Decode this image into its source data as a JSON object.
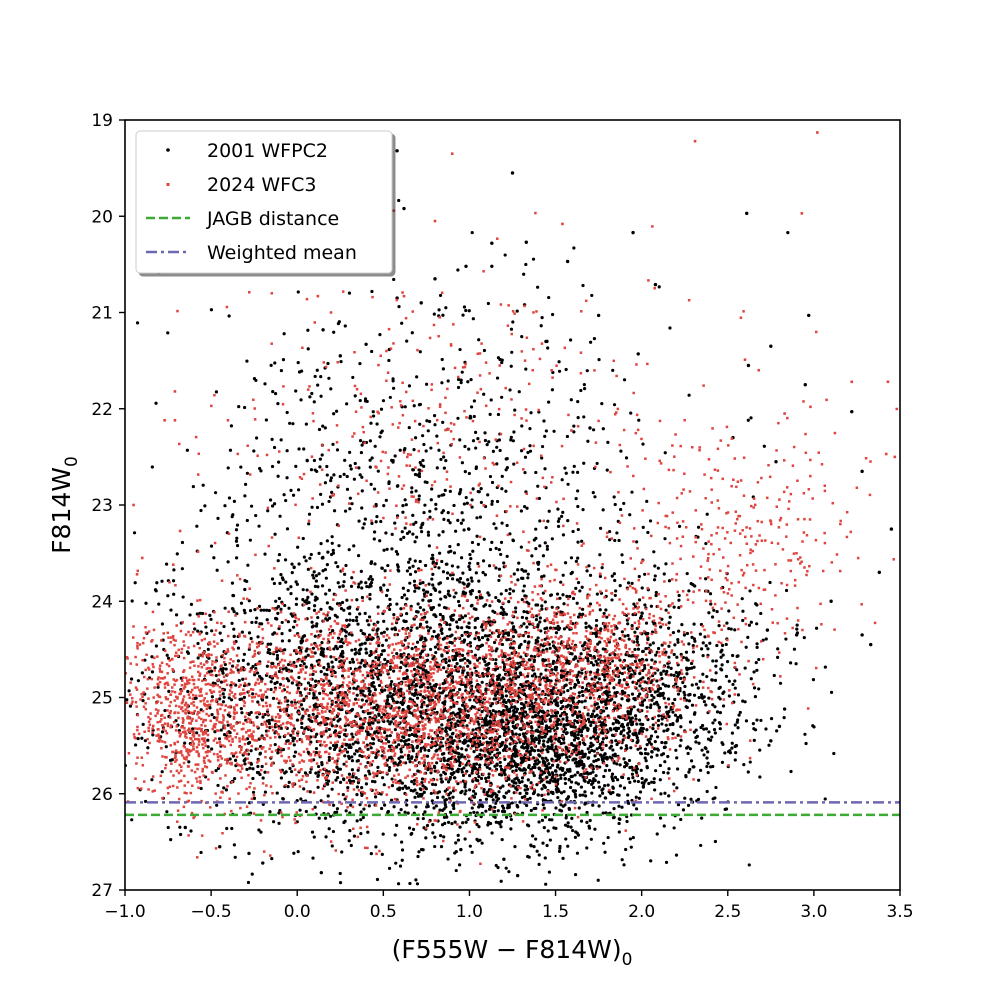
{
  "chart_data": {
    "type": "scatter",
    "title": "",
    "xlabel": "(F555W − F814W)",
    "xlabel_sub": "0",
    "ylabel": "F814W",
    "ylabel_sub": "0",
    "xlim": [
      -1.0,
      3.5
    ],
    "ylim": [
      27,
      19
    ],
    "y_inverted": true,
    "grid": false,
    "legend_position": "top-left",
    "x_ticks": [
      "−1.0",
      "−0.5",
      "0.0",
      "0.5",
      "1.0",
      "1.5",
      "2.0",
      "2.5",
      "3.0",
      "3.5"
    ],
    "y_ticks": [
      "19",
      "20",
      "21",
      "22",
      "23",
      "24",
      "25",
      "26",
      "27"
    ],
    "series": [
      {
        "name": "2001 WFPC2",
        "kind": "scatter",
        "color": "#000000",
        "points": [
          [
            0.58,
            19.32
          ],
          [
            0.62,
            19.92
          ],
          [
            1.25,
            19.55
          ],
          [
            2.61,
            19.97
          ],
          [
            1.95,
            20.17
          ],
          [
            1.13,
            20.28
          ],
          [
            1.33,
            20.27
          ],
          [
            0.98,
            20.52
          ],
          [
            1.13,
            20.52
          ],
          [
            0.8,
            20.65
          ],
          [
            2.08,
            20.71
          ],
          [
            1.57,
            20.47
          ],
          [
            0.58,
            20.85
          ],
          [
            0.72,
            20.9
          ],
          [
            1.32,
            20.92
          ],
          [
            1.75,
            21.03
          ],
          [
            2.97,
            21.03
          ],
          [
            0.15,
            21.18
          ],
          [
            0.4,
            21.33
          ],
          [
            1.45,
            21.3
          ],
          [
            1.98,
            21.43
          ],
          [
            2.75,
            21.35
          ],
          [
            2.62,
            21.55
          ],
          [
            0.25,
            21.45
          ],
          [
            2.95,
            21.75
          ],
          [
            3.22,
            22.03
          ],
          [
            1.7,
            22.2
          ],
          [
            2.53,
            22.3
          ],
          [
            2.78,
            22.55
          ],
          [
            3.28,
            22.65
          ],
          [
            3.45,
            23.25
          ],
          [
            3.38,
            23.7
          ],
          [
            3.1,
            24.0
          ],
          [
            2.73,
            24.3
          ],
          [
            2.9,
            24.35
          ],
          [
            3.28,
            24.35
          ],
          [
            3.33,
            24.45
          ],
          [
            2.83,
            25.12
          ],
          [
            2.8,
            25.3
          ],
          [
            2.75,
            25.45
          ],
          [
            2.55,
            25.5
          ],
          [
            -0.65,
            26.35
          ],
          [
            -0.45,
            26.55
          ],
          [
            -0.28,
            26.62
          ],
          [
            -0.2,
            26.72
          ],
          [
            0.14,
            26.82
          ],
          [
            1.28,
            26.85
          ],
          [
            0.95,
            26.58
          ],
          [
            1.2,
            26.68
          ]
        ]
      },
      {
        "name": "2024 WFC3",
        "kind": "scatter",
        "color": "#e0443e",
        "points": [
          [
            3.02,
            19.13
          ],
          [
            2.31,
            19.22
          ],
          [
            0.9,
            19.35
          ],
          [
            2.93,
            19.97
          ],
          [
            0.8,
            20.05
          ],
          [
            1.54,
            20.08
          ],
          [
            0.12,
            20.83
          ],
          [
            0.62,
            20.83
          ],
          [
            -0.71,
            21.82
          ],
          [
            -0.77,
            22.12
          ],
          [
            -0.71,
            22.12
          ],
          [
            3.22,
            21.72
          ],
          [
            3.43,
            21.72
          ],
          [
            2.6,
            21.49
          ],
          [
            2.68,
            21.6
          ],
          [
            2.98,
            21.98
          ],
          [
            2.83,
            22.05
          ],
          [
            3.47,
            22.5
          ],
          [
            3.42,
            22.47
          ],
          [
            -0.95,
            23.0
          ],
          [
            -0.9,
            23.55
          ],
          [
            -0.68,
            23.27
          ],
          [
            -0.93,
            23.72
          ],
          [
            -0.72,
            23.62
          ]
        ]
      },
      {
        "name": "JAGB distance",
        "kind": "hline",
        "y": 26.22,
        "color": "#3daa35",
        "dash": "dashed"
      },
      {
        "name": "Weighted mean",
        "kind": "hline",
        "y": 26.09,
        "color": "#6e68b0",
        "dash": "dashdot"
      }
    ],
    "density_regions": [
      {
        "series": "2001 WFPC2",
        "color": "#000000",
        "cx": 0.7,
        "cy": 25.0,
        "sx": 0.75,
        "sy": 0.75,
        "count": 3200
      },
      {
        "series": "2001 WFPC2",
        "color": "#000000",
        "cx": 1.45,
        "cy": 25.5,
        "sx": 0.4,
        "sy": 0.45,
        "count": 1400
      },
      {
        "series": "2001 WFPC2",
        "color": "#000000",
        "cx": 0.8,
        "cy": 22.8,
        "sx": 0.65,
        "sy": 1.0,
        "count": 800
      },
      {
        "series": "2001 WFPC2",
        "color": "#000000",
        "cx": 2.1,
        "cy": 24.8,
        "sx": 0.35,
        "sy": 0.55,
        "count": 500
      },
      {
        "series": "2024 WFC3",
        "color": "#e0443e",
        "cx": 0.6,
        "cy": 25.1,
        "sx": 0.65,
        "sy": 0.5,
        "count": 2300
      },
      {
        "series": "2024 WFC3",
        "color": "#e0443e",
        "cx": -0.62,
        "cy": 25.15,
        "sx": 0.22,
        "sy": 0.5,
        "count": 700
      },
      {
        "series": "2024 WFC3",
        "color": "#e0443e",
        "cx": 1.7,
        "cy": 24.6,
        "sx": 0.35,
        "sy": 0.45,
        "count": 650
      },
      {
        "series": "2024 WFC3",
        "color": "#e0443e",
        "cx": 2.6,
        "cy": 23.3,
        "sx": 0.35,
        "sy": 0.55,
        "count": 280
      },
      {
        "series": "2024 WFC3",
        "color": "#e0443e",
        "cx": 0.9,
        "cy": 22.3,
        "sx": 0.7,
        "sy": 0.9,
        "count": 350
      }
    ]
  }
}
